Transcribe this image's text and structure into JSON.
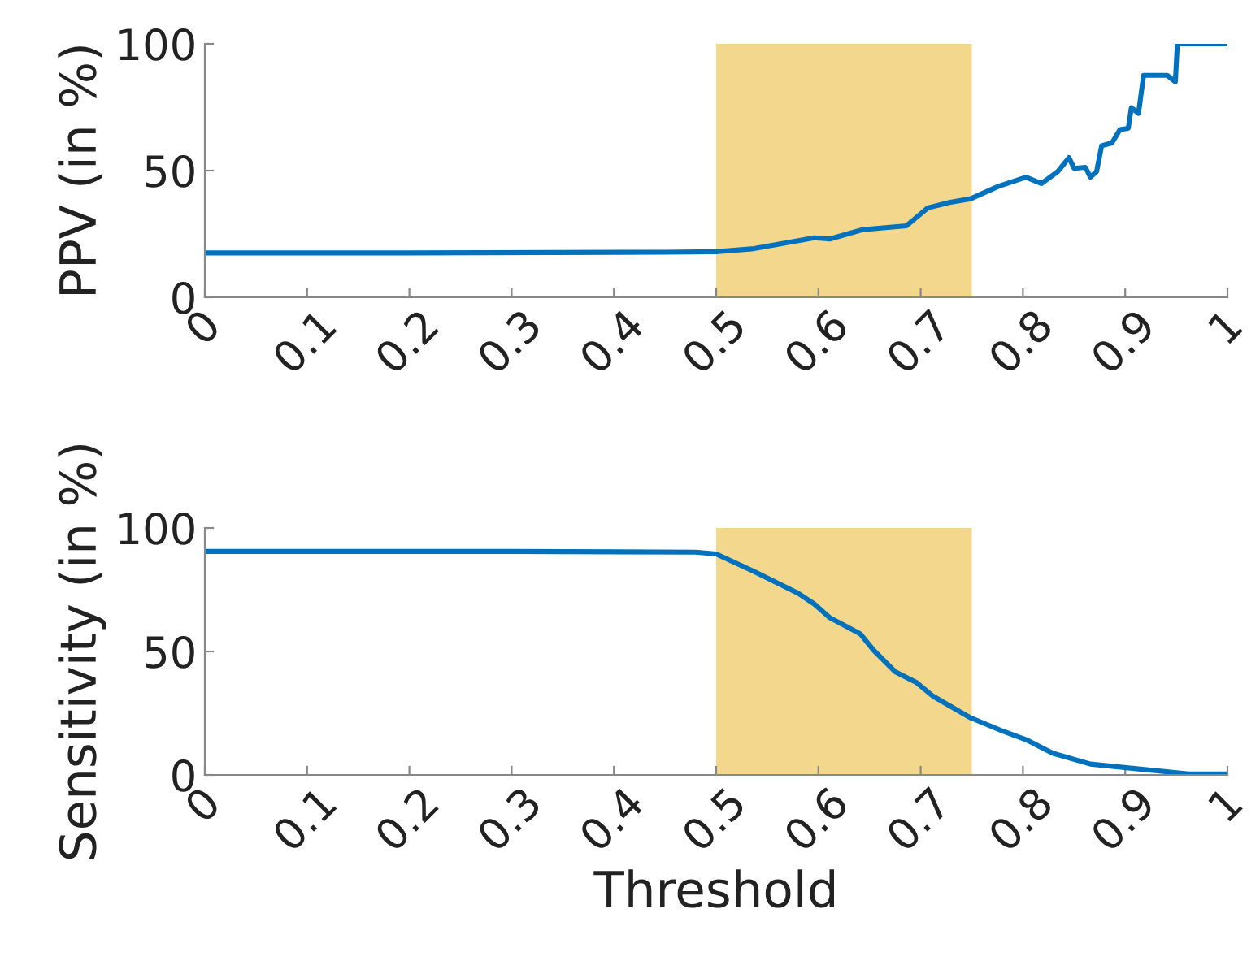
{
  "chart_data": [
    {
      "type": "line",
      "ylabel": "PPV (in %)",
      "xlim": [
        0,
        1
      ],
      "xticks": [
        0,
        0.1,
        0.2,
        0.3,
        0.4,
        0.5,
        0.6,
        0.7,
        0.8,
        0.9,
        1
      ],
      "ylim": [
        0,
        100
      ],
      "yticks": [
        0,
        50,
        100
      ],
      "grid": false,
      "line_style": "solid",
      "series": [
        {
          "color": "#0072bd",
          "x": [
            0,
            0.2,
            0.45,
            0.5,
            0.537,
            0.596,
            0.611,
            0.643,
            0.686,
            0.707,
            0.728,
            0.749,
            0.776,
            0.803,
            0.818,
            0.834,
            0.845,
            0.85,
            0.861,
            0.866,
            0.872,
            0.877,
            0.887,
            0.895,
            0.903,
            0.906,
            0.913,
            0.918,
            0.941,
            0.949,
            0.951,
            1
          ],
          "values": [
            17.5,
            17.5,
            17.8,
            18,
            19.2,
            23.5,
            23,
            26.7,
            28.2,
            35.3,
            37.4,
            38.9,
            43.8,
            47.4,
            44.9,
            49.6,
            55.1,
            50.9,
            51.3,
            47.4,
            49.6,
            59.8,
            60.9,
            66.2,
            66.7,
            74.8,
            72.6,
            87.6,
            87.6,
            85,
            100,
            100
          ]
        }
      ],
      "bands": [
        {
          "axis": "x",
          "from": 0.5,
          "to": 0.75,
          "color": "#edc250"
        }
      ]
    },
    {
      "type": "line",
      "ylabel": "Sensitivity (in %)",
      "xlabel": "Threshold",
      "xlim": [
        0,
        1
      ],
      "xticks": [
        0,
        0.1,
        0.2,
        0.3,
        0.4,
        0.5,
        0.6,
        0.7,
        0.8,
        0.9,
        1
      ],
      "ylim": [
        0,
        100
      ],
      "yticks": [
        0,
        50,
        100
      ],
      "grid": false,
      "line_style": "solid",
      "series": [
        {
          "color": "#0072bd",
          "x": [
            0,
            0.3,
            0.48,
            0.5,
            0.537,
            0.58,
            0.596,
            0.611,
            0.641,
            0.654,
            0.675,
            0.696,
            0.712,
            0.749,
            0.781,
            0.803,
            0.829,
            0.866,
            0.909,
            0.962,
            1
          ],
          "values": [
            90.5,
            90.5,
            90.2,
            89.5,
            82.4,
            73.6,
            69.2,
            63.7,
            57.1,
            50.5,
            41.8,
            37.4,
            31.9,
            23.1,
            17.6,
            14.3,
            8.8,
            4.4,
            2.6,
            0.4,
            0.4
          ]
        }
      ],
      "bands": [
        {
          "axis": "x",
          "from": 0.5,
          "to": 0.75,
          "color": "#edc250"
        }
      ]
    }
  ]
}
